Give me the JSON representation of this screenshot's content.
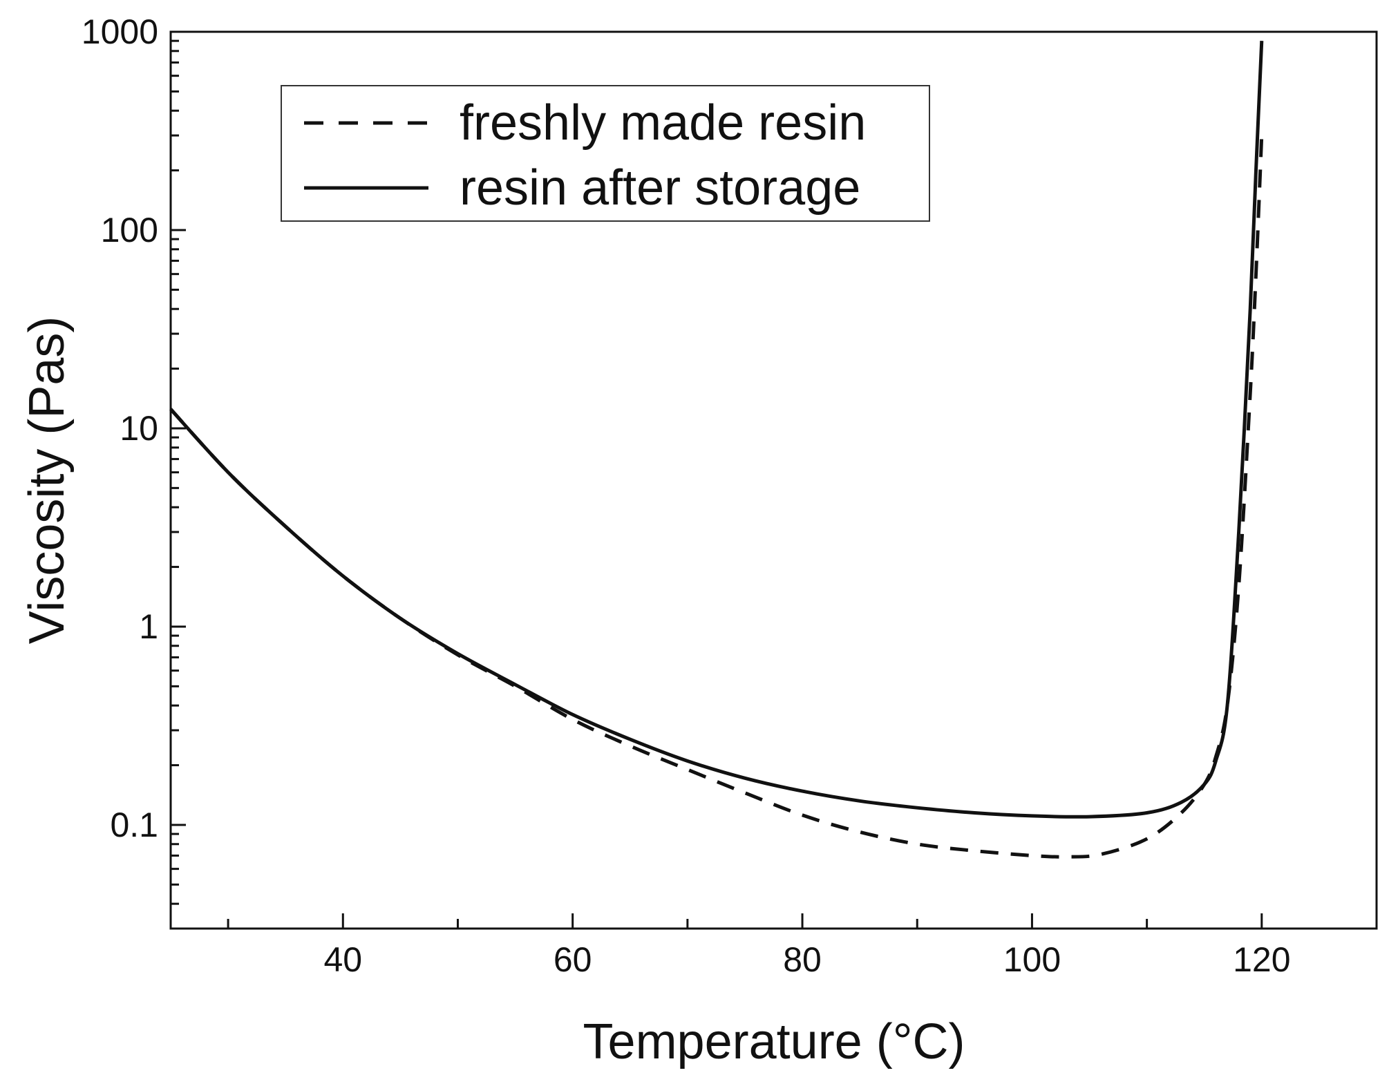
{
  "chart_data": {
    "type": "line",
    "title": "",
    "xlabel": "Temperature (°C)",
    "ylabel": "Viscosity (Pas)",
    "xlim": [
      25,
      130
    ],
    "ylim": [
      0.03,
      1000
    ],
    "yscale": "log",
    "grid": false,
    "legend_position": "top-left",
    "x_ticks": [
      {
        "value": 40,
        "label": "40"
      },
      {
        "value": 60,
        "label": "60"
      },
      {
        "value": 80,
        "label": "80"
      },
      {
        "value": 100,
        "label": "100"
      },
      {
        "value": 120,
        "label": "120"
      }
    ],
    "y_ticks": [
      {
        "value": 0.1,
        "label": "0.1"
      },
      {
        "value": 1,
        "label": "1"
      },
      {
        "value": 10,
        "label": "10"
      },
      {
        "value": 100,
        "label": "100"
      },
      {
        "value": 1000,
        "label": "1000"
      }
    ],
    "series": [
      {
        "name": "freshly made resin",
        "style": "dashed",
        "color": "#111111",
        "x": [
          25,
          30,
          35,
          40,
          45,
          50,
          55,
          60,
          65,
          70,
          75,
          80,
          85,
          90,
          95,
          100,
          103,
          106,
          110,
          113,
          115,
          116,
          117,
          118,
          119,
          119.5,
          120
        ],
        "y": [
          12.5,
          6.0,
          3.2,
          1.8,
          1.1,
          0.72,
          0.5,
          0.34,
          0.25,
          0.19,
          0.145,
          0.112,
          0.092,
          0.08,
          0.074,
          0.07,
          0.069,
          0.071,
          0.085,
          0.115,
          0.16,
          0.22,
          0.4,
          1.6,
          15,
          60,
          300
        ]
      },
      {
        "name": "resin after storage",
        "style": "solid",
        "color": "#111111",
        "x": [
          25,
          30,
          35,
          40,
          45,
          50,
          55,
          60,
          65,
          70,
          75,
          80,
          85,
          90,
          95,
          100,
          105,
          110,
          113,
          115,
          116,
          117,
          118,
          119,
          119.5,
          120
        ],
        "y": [
          12.5,
          6.0,
          3.2,
          1.8,
          1.1,
          0.73,
          0.51,
          0.36,
          0.27,
          0.21,
          0.172,
          0.148,
          0.132,
          0.122,
          0.115,
          0.111,
          0.11,
          0.115,
          0.13,
          0.16,
          0.21,
          0.4,
          3,
          40,
          200,
          900
        ]
      }
    ]
  }
}
